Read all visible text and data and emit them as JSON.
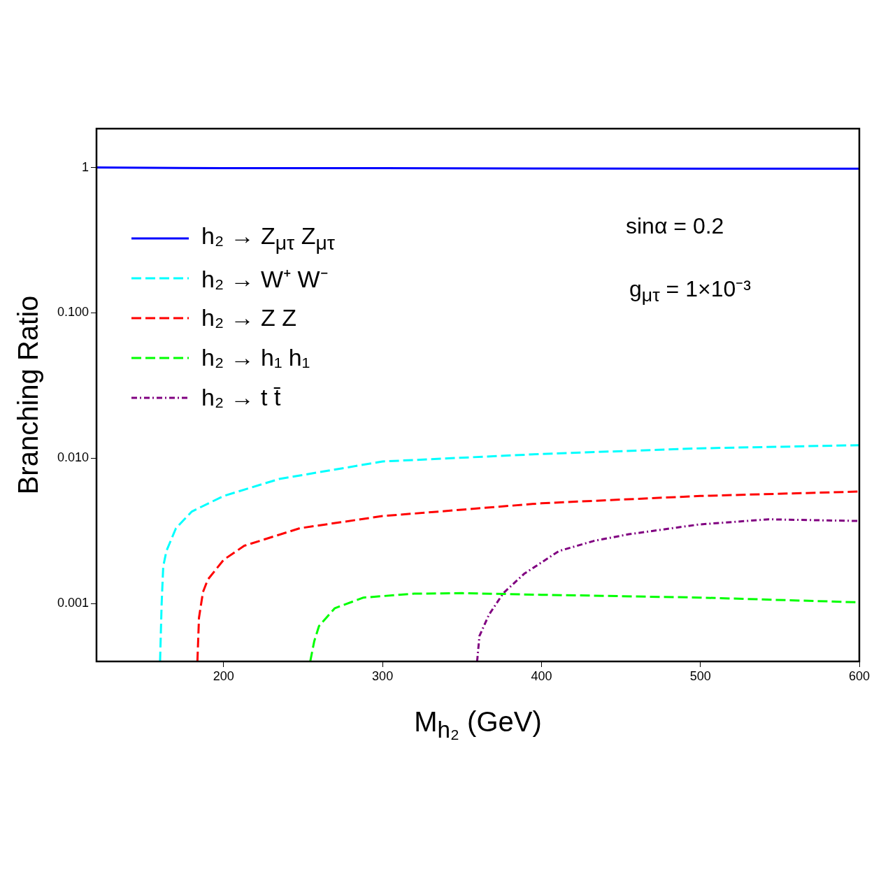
{
  "chart_data": {
    "type": "line",
    "xlabel": "M$_{h₂}$ (GeV)",
    "ylabel": "Branching Ratio",
    "log": "y",
    "xlim": [
      120,
      600
    ],
    "xticks": [
      200,
      300,
      400,
      500,
      600
    ],
    "ylim": [
      0.0004,
      1.85
    ],
    "yticks": [
      {
        "value": 0.001,
        "label": "0.001"
      },
      {
        "value": 0.01,
        "label": "0.010"
      },
      {
        "value": 0.1,
        "label": "0.100"
      },
      {
        "value": 1,
        "label": "1"
      }
    ],
    "legend": "top left",
    "marker": "none",
    "annotations": [
      "sinα = 0.2",
      "g$_{μτ}$ = 1×10⁻³"
    ],
    "series": [
      {
        "name": "h₂ → Z$_{μτ}$ Z$_{μτ}$",
        "color": "#0000ff",
        "line_style": "solid",
        "x": [
          120,
          200,
          300,
          400,
          500,
          600
        ],
        "values": [
          1.0,
          0.99,
          0.99,
          0.985,
          0.98,
          0.98
        ]
      },
      {
        "name": "h₂ → W⁺ W⁻",
        "color": "#00ffff",
        "line_style": "dashed",
        "x": [
          160,
          161,
          162,
          164,
          170,
          180,
          200,
          235,
          300,
          400,
          500,
          600
        ],
        "values": [
          0.0004,
          0.001,
          0.0018,
          0.0023,
          0.0033,
          0.0043,
          0.0055,
          0.0072,
          0.0095,
          0.0107,
          0.0117,
          0.0123
        ]
      },
      {
        "name": "h₂ → Z Z",
        "color": "#ff0000",
        "line_style": "dashed",
        "x": [
          183.5,
          184.5,
          187,
          190,
          200,
          213,
          248,
          300,
          400,
          500,
          600
        ],
        "values": [
          0.0004,
          0.0008,
          0.0012,
          0.00146,
          0.002,
          0.0025,
          0.0033,
          0.004,
          0.0049,
          0.0055,
          0.0059
        ]
      },
      {
        "name": "h₂ → h₁ h₁",
        "color": "#00ff00",
        "line_style": "dashed",
        "x": [
          254.5,
          257,
          260,
          270,
          288,
          320,
          350,
          400,
          500,
          600
        ],
        "values": [
          0.0004,
          0.00055,
          0.0007,
          0.00093,
          0.0011,
          0.00117,
          0.00118,
          0.00115,
          0.0011,
          0.00102
        ]
      },
      {
        "name": "h₂ → t t̄",
        "color": "#800080",
        "line_style": "dashdot",
        "x": [
          359.5,
          361,
          367,
          376,
          389,
          411,
          433,
          455,
          499,
          543,
          600
        ],
        "values": [
          0.0004,
          0.0006,
          0.00084,
          0.00118,
          0.0016,
          0.0023,
          0.0027,
          0.003,
          0.0035,
          0.0038,
          0.0037
        ]
      }
    ]
  }
}
